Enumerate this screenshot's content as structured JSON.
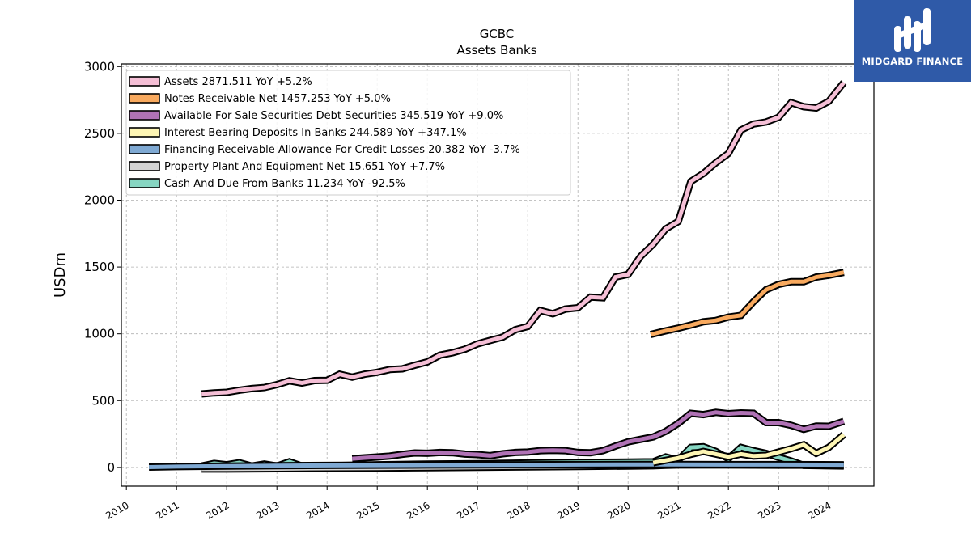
{
  "logo": {
    "text": "MIDGARD FINANCE",
    "icon": "midgard-logo-icon"
  },
  "chart_data": {
    "type": "line",
    "title": "GCBC",
    "subtitle": "Assets Banks",
    "xlabel": "",
    "ylabel": "USDm",
    "xlim": [
      2009.9,
      2024.9
    ],
    "ylim": [
      -140,
      3020
    ],
    "x_ticks": [
      2010,
      2011,
      2012,
      2013,
      2014,
      2015,
      2016,
      2017,
      2018,
      2019,
      2020,
      2021,
      2022,
      2023,
      2024
    ],
    "x_tick_labels": [
      "2010",
      "2011",
      "2012",
      "2013",
      "2014",
      "2015",
      "2016",
      "2017",
      "2018",
      "2019",
      "2020",
      "2021",
      "2022",
      "2023",
      "2024"
    ],
    "y_ticks": [
      0,
      500,
      1000,
      1500,
      2000,
      2500,
      3000
    ],
    "y_tick_labels": [
      "0",
      "500",
      "1000",
      "1500",
      "2000",
      "2500",
      "3000"
    ],
    "grid": true,
    "legend_position": "top-left",
    "series": [
      {
        "name": "Assets  2871.511 YoY +5.2%",
        "color": "#f5bfd6",
        "points": [
          [
            2011.5,
            550
          ],
          [
            2011.75,
            558
          ],
          [
            2012.0,
            562
          ],
          [
            2012.25,
            578
          ],
          [
            2012.5,
            590
          ],
          [
            2012.75,
            598
          ],
          [
            2013.0,
            620
          ],
          [
            2013.25,
            648
          ],
          [
            2013.5,
            632
          ],
          [
            2013.75,
            650
          ],
          [
            2014.0,
            652
          ],
          [
            2014.25,
            698
          ],
          [
            2014.5,
            676
          ],
          [
            2014.75,
            698
          ],
          [
            2015.0,
            712
          ],
          [
            2015.25,
            733
          ],
          [
            2015.5,
            738
          ],
          [
            2015.75,
            765
          ],
          [
            2016.0,
            790
          ],
          [
            2016.25,
            840
          ],
          [
            2016.5,
            858
          ],
          [
            2016.75,
            885
          ],
          [
            2017.0,
            925
          ],
          [
            2017.25,
            950
          ],
          [
            2017.5,
            975
          ],
          [
            2017.75,
            1030
          ],
          [
            2018.0,
            1055
          ],
          [
            2018.25,
            1175
          ],
          [
            2018.5,
            1150
          ],
          [
            2018.75,
            1185
          ],
          [
            2019.0,
            1195
          ],
          [
            2019.25,
            1275
          ],
          [
            2019.5,
            1270
          ],
          [
            2019.75,
            1425
          ],
          [
            2020.0,
            1445
          ],
          [
            2020.25,
            1580
          ],
          [
            2020.5,
            1670
          ],
          [
            2020.75,
            1785
          ],
          [
            2021.0,
            1840
          ],
          [
            2021.25,
            2140
          ],
          [
            2021.5,
            2200
          ],
          [
            2021.75,
            2280
          ],
          [
            2022.0,
            2350
          ],
          [
            2022.25,
            2525
          ],
          [
            2022.5,
            2570
          ],
          [
            2022.75,
            2585
          ],
          [
            2023.0,
            2620
          ],
          [
            2023.25,
            2730
          ],
          [
            2023.5,
            2700
          ],
          [
            2023.75,
            2690
          ],
          [
            2024.0,
            2740
          ],
          [
            2024.3,
            2880
          ]
        ]
      },
      {
        "name": "Notes Receivable Net  1457.253 YoY +5.0%",
        "color": "#f8a95e",
        "points": [
          [
            2020.45,
            995
          ],
          [
            2020.75,
            1022
          ],
          [
            2021.0,
            1042
          ],
          [
            2021.25,
            1065
          ],
          [
            2021.5,
            1090
          ],
          [
            2021.75,
            1100
          ],
          [
            2022.0,
            1125
          ],
          [
            2022.25,
            1138
          ],
          [
            2022.5,
            1240
          ],
          [
            2022.75,
            1330
          ],
          [
            2023.0,
            1370
          ],
          [
            2023.25,
            1390
          ],
          [
            2023.5,
            1390
          ],
          [
            2023.75,
            1425
          ],
          [
            2024.0,
            1438
          ],
          [
            2024.3,
            1460
          ]
        ]
      },
      {
        "name": "Available For Sale Securities Debt Securities  345.519 YoY +9.0%",
        "color": "#b072b5",
        "points": [
          [
            2014.5,
            65
          ],
          [
            2014.75,
            72
          ],
          [
            2015.0,
            78
          ],
          [
            2015.25,
            85
          ],
          [
            2015.5,
            98
          ],
          [
            2015.75,
            108
          ],
          [
            2016.0,
            106
          ],
          [
            2016.25,
            112
          ],
          [
            2016.5,
            110
          ],
          [
            2016.75,
            100
          ],
          [
            2017.0,
            96
          ],
          [
            2017.25,
            88
          ],
          [
            2017.5,
            102
          ],
          [
            2017.75,
            112
          ],
          [
            2018.0,
            115
          ],
          [
            2018.25,
            126
          ],
          [
            2018.5,
            128
          ],
          [
            2018.75,
            126
          ],
          [
            2019.0,
            112
          ],
          [
            2019.25,
            110
          ],
          [
            2019.5,
            126
          ],
          [
            2019.75,
            160
          ],
          [
            2020.0,
            192
          ],
          [
            2020.25,
            210
          ],
          [
            2020.5,
            228
          ],
          [
            2020.75,
            270
          ],
          [
            2021.0,
            330
          ],
          [
            2021.25,
            405
          ],
          [
            2021.5,
            395
          ],
          [
            2021.75,
            412
          ],
          [
            2022.0,
            402
          ],
          [
            2022.25,
            408
          ],
          [
            2022.5,
            405
          ],
          [
            2022.75,
            335
          ],
          [
            2023.0,
            335
          ],
          [
            2023.25,
            315
          ],
          [
            2023.5,
            285
          ],
          [
            2023.75,
            310
          ],
          [
            2024.0,
            308
          ],
          [
            2024.3,
            345
          ]
        ]
      },
      {
        "name": "Interest Bearing Deposits In Banks  244.589 YoY +347.1%",
        "color": "#fdf5b4",
        "points": [
          [
            2020.5,
            35
          ],
          [
            2021.0,
            70
          ],
          [
            2021.25,
            98
          ],
          [
            2021.5,
            120
          ],
          [
            2022.0,
            80
          ],
          [
            2022.25,
            100
          ],
          [
            2022.5,
            85
          ],
          [
            2022.75,
            90
          ],
          [
            2023.0,
            115
          ],
          [
            2023.25,
            140
          ],
          [
            2023.5,
            170
          ],
          [
            2023.75,
            105
          ],
          [
            2024.0,
            150
          ],
          [
            2024.3,
            245
          ]
        ]
      },
      {
        "name": "Financing Receivable Allowance For Credit Losses  20.382 YoY -3.7%",
        "color": "#7fa9d3",
        "points": [
          [
            2010.45,
            2
          ],
          [
            2011.0,
            6
          ],
          [
            2012.0,
            10
          ],
          [
            2013.0,
            13
          ],
          [
            2014.0,
            15
          ],
          [
            2015.0,
            17
          ],
          [
            2016.0,
            18
          ],
          [
            2017.0,
            19
          ],
          [
            2018.0,
            20
          ],
          [
            2019.0,
            21
          ],
          [
            2020.0,
            22
          ],
          [
            2021.0,
            22
          ],
          [
            2022.0,
            21
          ],
          [
            2023.0,
            21
          ],
          [
            2024.3,
            20
          ]
        ]
      },
      {
        "name": "Property Plant And Equipment Net  15.651 YoY +7.7%",
        "color": "#d4d4d4",
        "points": [
          [
            2011.5,
            -12
          ],
          [
            2012.0,
            -12
          ],
          [
            2013.0,
            -10
          ],
          [
            2014.0,
            -7
          ],
          [
            2015.0,
            -5
          ],
          [
            2016.0,
            -2
          ],
          [
            2017.0,
            1
          ],
          [
            2018.0,
            4
          ],
          [
            2019.0,
            7
          ],
          [
            2020.0,
            10
          ],
          [
            2020.5,
            12
          ],
          [
            2020.75,
            16
          ],
          [
            2021.0,
            18
          ],
          [
            2022.0,
            18
          ],
          [
            2023.0,
            17
          ],
          [
            2024.3,
            16
          ]
        ]
      },
      {
        "name": "Cash And Due From Banks  11.234 YoY -92.5%",
        "color": "#86d6c2",
        "points": [
          [
            2011.5,
            10
          ],
          [
            2011.75,
            30
          ],
          [
            2012.0,
            20
          ],
          [
            2012.25,
            35
          ],
          [
            2012.5,
            10
          ],
          [
            2012.75,
            25
          ],
          [
            2013.0,
            10
          ],
          [
            2013.25,
            42
          ],
          [
            2013.5,
            10
          ],
          [
            2014.0,
            12
          ],
          [
            2015.0,
            20
          ],
          [
            2016.0,
            25
          ],
          [
            2017.0,
            28
          ],
          [
            2018.0,
            33
          ],
          [
            2019.0,
            38
          ],
          [
            2020.0,
            40
          ],
          [
            2020.5,
            42
          ],
          [
            2020.75,
            78
          ],
          [
            2021.0,
            55
          ],
          [
            2021.25,
            150
          ],
          [
            2021.5,
            155
          ],
          [
            2021.75,
            120
          ],
          [
            2022.0,
            65
          ],
          [
            2022.25,
            150
          ],
          [
            2022.5,
            125
          ],
          [
            2022.75,
            105
          ],
          [
            2023.0,
            75
          ],
          [
            2023.25,
            48
          ],
          [
            2023.5,
            15
          ],
          [
            2024.0,
            12
          ],
          [
            2024.3,
            11
          ]
        ]
      }
    ]
  }
}
